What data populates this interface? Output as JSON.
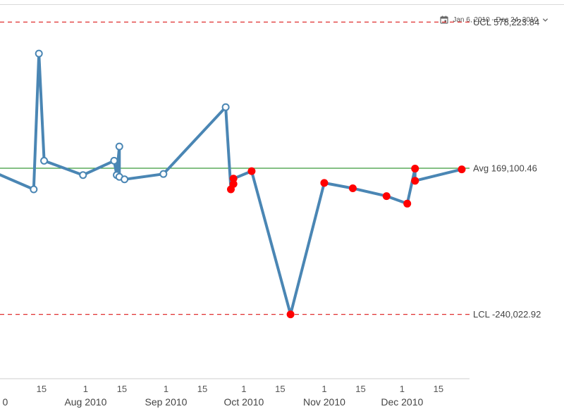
{
  "date_range": {
    "label": "Jan 6, 2010 - Dec 24, 2010",
    "icon": "calendar-icon",
    "dropdown_icon": "chevron-down-icon"
  },
  "colors": {
    "series_line": "#4a86b4",
    "in_control_point_fill": "#ffffff",
    "out_of_control_point": "#ff0000",
    "control_limit_line": "#e03030",
    "average_line": "#3a9a3a"
  },
  "chart_data": {
    "type": "line",
    "x_type": "date",
    "xlim": [
      "2010-06-29",
      "2010-12-27"
    ],
    "ylim": [
      -420000,
      640000
    ],
    "ucl": {
      "label": "UCL 578,223.84",
      "value": 578223.84
    },
    "avg": {
      "label": "Avg 169,100.46",
      "value": 169100.46
    },
    "lcl": {
      "label": "LCL -240,022.92",
      "value": -240022.92
    },
    "x_ticks": [
      {
        "date": "2010-07-15",
        "label": "15"
      },
      {
        "date": "2010-08-01",
        "label": "1"
      },
      {
        "date": "2010-08-15",
        "label": "15"
      },
      {
        "date": "2010-09-01",
        "label": "1"
      },
      {
        "date": "2010-09-15",
        "label": "15"
      },
      {
        "date": "2010-10-01",
        "label": "1"
      },
      {
        "date": "2010-10-15",
        "label": "15"
      },
      {
        "date": "2010-11-01",
        "label": "1"
      },
      {
        "date": "2010-11-15",
        "label": "15"
      },
      {
        "date": "2010-12-01",
        "label": "1"
      },
      {
        "date": "2010-12-15",
        "label": "15"
      }
    ],
    "month_labels": [
      {
        "date": "2010-07-01",
        "label": "0"
      },
      {
        "date": "2010-08-01",
        "label": "Aug 2010"
      },
      {
        "date": "2010-09-01",
        "label": "Sep 2010"
      },
      {
        "date": "2010-10-01",
        "label": "Oct 2010"
      },
      {
        "date": "2010-11-01",
        "label": "Nov 2010"
      },
      {
        "date": "2010-12-01",
        "label": "Dec 2010"
      }
    ],
    "series": [
      {
        "points": [
          {
            "x": "2010-06-26",
            "y": 160000,
            "out_of_control": false
          },
          {
            "x": "2010-07-12",
            "y": 110000,
            "out_of_control": false
          },
          {
            "x": "2010-07-14",
            "y": 490000,
            "out_of_control": false
          },
          {
            "x": "2010-07-16",
            "y": 190000,
            "out_of_control": false
          },
          {
            "x": "2010-07-31",
            "y": 150000,
            "out_of_control": false
          },
          {
            "x": "2010-08-12",
            "y": 190000,
            "out_of_control": false
          },
          {
            "x": "2010-08-13",
            "y": 150000,
            "out_of_control": false
          },
          {
            "x": "2010-08-14",
            "y": 230000,
            "out_of_control": false
          },
          {
            "x": "2010-08-14",
            "y": 145000,
            "out_of_control": false
          },
          {
            "x": "2010-08-16",
            "y": 138000,
            "out_of_control": false
          },
          {
            "x": "2010-08-31",
            "y": 153000,
            "out_of_control": false
          },
          {
            "x": "2010-09-24",
            "y": 340000,
            "out_of_control": false
          },
          {
            "x": "2010-09-26",
            "y": 110000,
            "out_of_control": true
          },
          {
            "x": "2010-09-27",
            "y": 125000,
            "out_of_control": true
          },
          {
            "x": "2010-09-27",
            "y": 140000,
            "out_of_control": true
          },
          {
            "x": "2010-10-04",
            "y": 161000,
            "out_of_control": true
          },
          {
            "x": "2010-10-19",
            "y": -240000,
            "out_of_control": true
          },
          {
            "x": "2010-11-01",
            "y": 128000,
            "out_of_control": true
          },
          {
            "x": "2010-11-12",
            "y": 113000,
            "out_of_control": true
          },
          {
            "x": "2010-11-25",
            "y": 91000,
            "out_of_control": true
          },
          {
            "x": "2010-12-03",
            "y": 70000,
            "out_of_control": true
          },
          {
            "x": "2010-12-06",
            "y": 168000,
            "out_of_control": true
          },
          {
            "x": "2010-12-06",
            "y": 134000,
            "out_of_control": true
          },
          {
            "x": "2010-12-24",
            "y": 166000,
            "out_of_control": true
          }
        ]
      }
    ]
  }
}
